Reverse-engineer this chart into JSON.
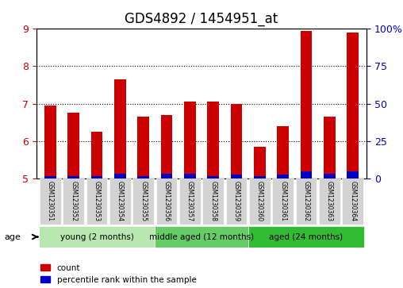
{
  "title": "GDS4892 / 1454951_at",
  "samples": [
    "GSM1230351",
    "GSM1230352",
    "GSM1230353",
    "GSM1230354",
    "GSM1230355",
    "GSM1230356",
    "GSM1230357",
    "GSM1230358",
    "GSM1230359",
    "GSM1230360",
    "GSM1230361",
    "GSM1230362",
    "GSM1230363",
    "GSM1230364"
  ],
  "count_values": [
    6.95,
    6.75,
    6.25,
    7.65,
    6.65,
    6.7,
    7.05,
    7.05,
    7.0,
    5.85,
    6.4,
    8.95,
    6.65,
    8.9
  ],
  "percentile_values": [
    0.07,
    0.07,
    0.07,
    0.12,
    0.07,
    0.12,
    0.12,
    0.07,
    0.1,
    0.07,
    0.1,
    0.2,
    0.12,
    0.2
  ],
  "bar_base": 5.0,
  "ylim_left": [
    5,
    9
  ],
  "ylim_right": [
    0,
    100
  ],
  "yticks_left": [
    5,
    6,
    7,
    8,
    9
  ],
  "yticks_right": [
    0,
    25,
    50,
    75,
    100
  ],
  "yticklabels_right": [
    "0",
    "25",
    "50",
    "75",
    "100%"
  ],
  "bar_color_red": "#cc0000",
  "bar_color_blue": "#0000cc",
  "group_colors": [
    "#b0e8b0",
    "#66cc66",
    "#33bb33"
  ],
  "groups": [
    {
      "label": "young (2 months)",
      "samples": [
        0,
        1,
        2,
        3,
        4
      ],
      "color": "#b8e8b0"
    },
    {
      "label": "middle aged (12 months)",
      "samples": [
        5,
        6,
        7,
        8
      ],
      "color": "#66cc66"
    },
    {
      "label": "aged (24 months)",
      "samples": [
        9,
        10,
        11,
        12,
        13
      ],
      "color": "#33bb33"
    }
  ],
  "legend_count": "count",
  "legend_percentile": "percentile rank within the sample",
  "age_label": "age",
  "grid_color": "#000000",
  "bg_color": "#d3d3d3",
  "plot_bg": "#ffffff",
  "tick_label_color_left": "#cc0000",
  "tick_label_color_right": "#0000cc"
}
